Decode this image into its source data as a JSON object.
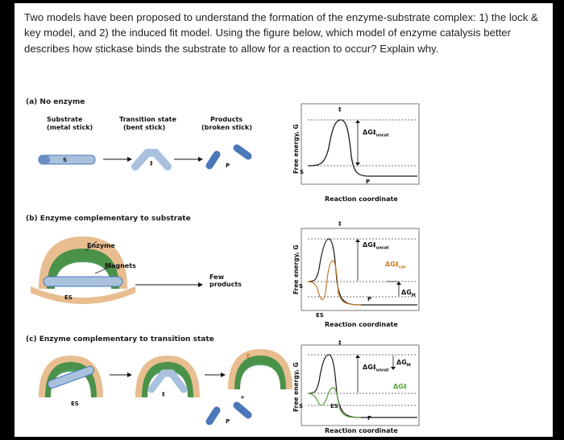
{
  "question": "Two models have been proposed to understand the formation of the enzyme-substrate complex: 1) the lock & key model, and 2) the induced fit model. Using the figure below, which model of enzyme catalysis better describes how stickase binds the substrate to allow for a reaction to occur? Explain why.",
  "panel_a": {
    "title": "(a) No enzyme",
    "substrate_label": "Substrate",
    "substrate_sub": "(metal stick)",
    "transition_label": "Transition state",
    "transition_sub": "(bent stick)",
    "products_label": "Products",
    "products_sub": "(broken stick)",
    "s_mark": "S",
    "p_mark": "P",
    "dagger": "‡"
  },
  "panel_b": {
    "title": "(b) Enzyme complementary to substrate",
    "enzyme_label": "Enzyme",
    "magnets_label": "Magnets",
    "few_products": "Few products",
    "es_label": "ES"
  },
  "panel_c": {
    "title": "(c) Enzyme complementary to transition state",
    "e_label": "E",
    "es_label": "ES",
    "plus": "+",
    "p_mark": "P",
    "dagger": "‡"
  },
  "graphs": {
    "ylabel": "Free energy, G",
    "xlabel": "Reaction coordinate",
    "dg_uncat": "ΔG‡",
    "dg_uncat_sub": "uncat",
    "dg_cat_sub": "cat",
    "dg_m": "ΔG",
    "dg_m_sub": "M",
    "dg_dagger": "ΔG‡",
    "s": "S",
    "p": "P",
    "es": "ES",
    "dagger": "‡"
  },
  "colors": {
    "enzyme_outer": "#e8bd8f",
    "enzyme_inner": "#2e8b3e",
    "stick": "#4a78b8",
    "stick_light": "#a9c1dd",
    "curve_green": "#5a9e3e",
    "curve_orange": "#c47b2a"
  }
}
